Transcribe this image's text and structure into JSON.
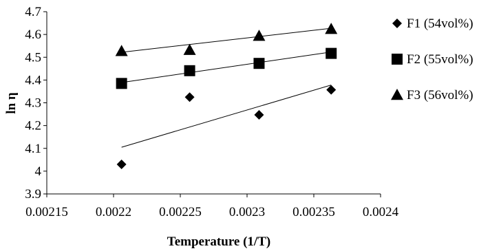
{
  "chart_data": {
    "type": "scatter",
    "title": "",
    "xlabel": "Temperature (1/T)",
    "ylabel": "ln η",
    "xlim": [
      0.00215,
      0.0024
    ],
    "ylim": [
      3.9,
      4.7
    ],
    "x_ticks": [
      "0.00215",
      "0.0022",
      "0.00225",
      "0.0023",
      "0.00235",
      "0.0024"
    ],
    "y_ticks": [
      "3.9",
      "4",
      "4.1",
      "4.2",
      "4.3",
      "4.4",
      "4.5",
      "4.6",
      "4.7"
    ],
    "grid": false,
    "legend_position": "right",
    "trendlines": true,
    "series": [
      {
        "name": "F1 (54vol%)",
        "marker": "diamond",
        "color": "#000000",
        "x": [
          0.002206,
          0.002257,
          0.002309,
          0.002363
        ],
        "y": [
          4.03,
          4.325,
          4.247,
          4.357
        ],
        "trend": [
          [
            0.002206,
            4.105
          ],
          [
            0.002363,
            4.378
          ]
        ]
      },
      {
        "name": "F2 (55vol%)",
        "marker": "square",
        "color": "#000000",
        "x": [
          0.002206,
          0.002257,
          0.002309,
          0.002363
        ],
        "y": [
          4.385,
          4.441,
          4.473,
          4.517
        ],
        "trend": [
          [
            0.002206,
            4.389
          ],
          [
            0.002363,
            4.523
          ]
        ]
      },
      {
        "name": "F3 (56vol%)",
        "marker": "triangle",
        "color": "#000000",
        "x": [
          0.002206,
          0.002257,
          0.002309,
          0.002363
        ],
        "y": [
          4.527,
          4.532,
          4.594,
          4.624
        ],
        "trend": [
          [
            0.002206,
            4.522
          ],
          [
            0.002363,
            4.627
          ]
        ]
      }
    ]
  }
}
